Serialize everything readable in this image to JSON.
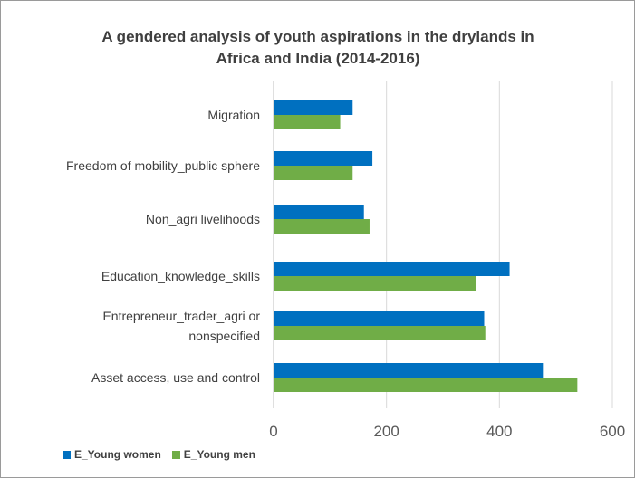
{
  "chart_data": {
    "type": "bar",
    "orientation": "horizontal",
    "title_lines": [
      "A gendered analysis of youth aspirations in the drylands in",
      "Africa and India (2014-2016)"
    ],
    "categories": [
      [
        "Migration"
      ],
      [
        "Freedom of mobility_public sphere"
      ],
      [
        "Non_agri livelihoods"
      ],
      [
        "Education_knowledge_skills"
      ],
      [
        "Entrepreneur_trader_agri or",
        "nonspecified"
      ],
      [
        "Asset access, use and control"
      ]
    ],
    "series": [
      {
        "name": "E_Young women",
        "color": "#0070c0",
        "values": [
          140,
          175,
          160,
          418,
          373,
          477
        ]
      },
      {
        "name": "E_Young men",
        "color": "#70ad47",
        "values": [
          118,
          140,
          170,
          358,
          375,
          538
        ]
      }
    ],
    "xlim": [
      0,
      600
    ],
    "xticks": [
      0,
      200,
      400,
      600
    ],
    "grid": true,
    "legend_position": "bottom-left"
  }
}
